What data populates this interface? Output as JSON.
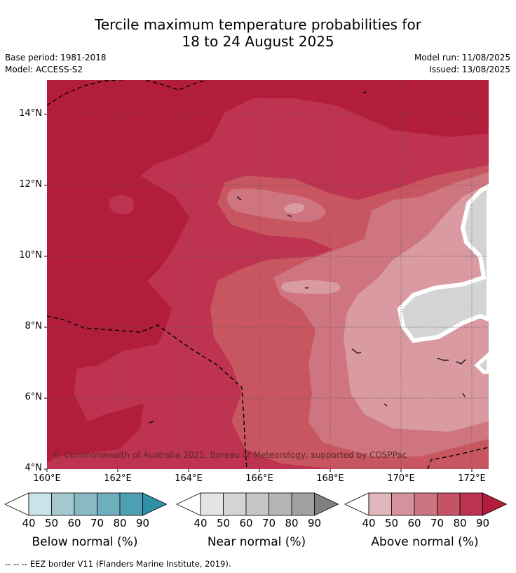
{
  "header": {
    "title_line1": "Tercile maximum temperature probabilities for",
    "title_line2": "18 to 24 August 2025",
    "base_period": "Base period: 1981-2018",
    "model": "Model: ACCESS-S2",
    "model_run": "Model run: 11/08/2025",
    "issued": "Issued: 13/08/2025"
  },
  "map": {
    "lat_labels": [
      "14°N",
      "12°N",
      "10°N",
      "8°N",
      "6°N",
      "4°N"
    ],
    "lon_labels": [
      "160°E",
      "162°E",
      "164°E",
      "166°E",
      "168°E",
      "170°E",
      "172°E"
    ],
    "copyright": "© Commonwealth of Australia 2025, Bureau of Meteorology, supported by COSPPac",
    "colors": {
      "above_90": "#b21d3b",
      "above_80": "#bd3350",
      "above_70": "#c85660",
      "above_60": "#cf7580",
      "above_50": "#d99aa1",
      "near_normal": "#d4d4d4",
      "grid": "#555555",
      "eez_border": "#000000"
    }
  },
  "legend": {
    "ticks": [
      "40",
      "50",
      "60",
      "70",
      "80",
      "90"
    ],
    "below": {
      "label": "Below normal (%)",
      "colors": [
        "#ffffff",
        "#cae3e9",
        "#a4c8cf",
        "#8ab9c5",
        "#6faebd",
        "#4f9fb2",
        "#2f90a6"
      ]
    },
    "near": {
      "label": "Near normal (%)",
      "colors": [
        "#ffffff",
        "#e4e4e4",
        "#d4d4d4",
        "#c6c6c6",
        "#b4b4b4",
        "#a0a0a0",
        "#808080"
      ]
    },
    "above": {
      "label": "Above normal (%)",
      "colors": [
        "#ffffff",
        "#e0b5bb",
        "#d4929c",
        "#cc7581",
        "#c55364",
        "#bb3350",
        "#b21d3b"
      ]
    }
  },
  "footer": {
    "eez_note": "--  --  -- EEZ border V11 (Flanders Marine Institute, 2019)."
  }
}
